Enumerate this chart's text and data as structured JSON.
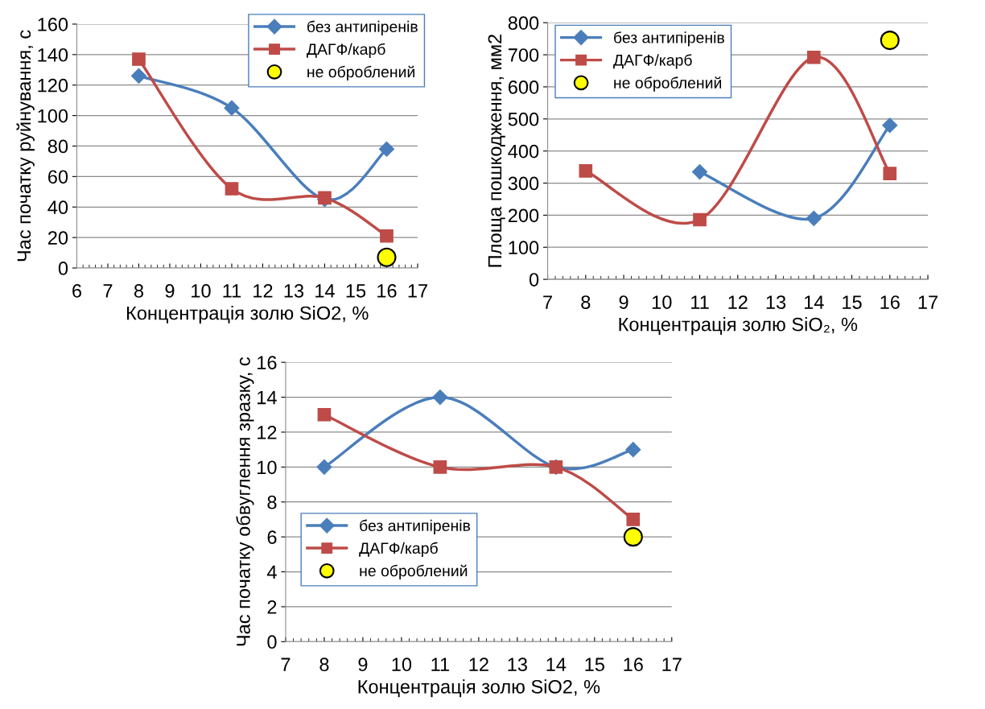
{
  "chart_data": [
    {
      "type": "line",
      "xlabel": "Концентрація золю SiO2, %",
      "ylabel": "Час початку руйнування, с",
      "xlim": [
        6,
        17
      ],
      "xticks": [
        6,
        7,
        8,
        9,
        10,
        11,
        12,
        13,
        14,
        15,
        16,
        17
      ],
      "ylim": [
        0,
        160
      ],
      "yticks": [
        0,
        20,
        40,
        60,
        80,
        100,
        120,
        140,
        160
      ],
      "grid": "y",
      "legend": "top right",
      "series": [
        {
          "name": "без антипіренів",
          "color": "#4a7ebb",
          "marker": "diamond",
          "x": [
            8,
            11,
            14,
            16
          ],
          "values": [
            126,
            105,
            45,
            78
          ]
        },
        {
          "name": "ДАГФ/карб",
          "color": "#be4b48",
          "marker": "square",
          "x": [
            8,
            11,
            14,
            16
          ],
          "values": [
            137,
            52,
            46,
            21
          ]
        },
        {
          "name": "не оброблений",
          "type": "scatter",
          "color": "#ffff00",
          "marker": "circle",
          "x": [
            16
          ],
          "values": [
            7
          ]
        }
      ]
    },
    {
      "type": "line",
      "xlabel": "Концентрація золю SiO₂, %",
      "ylabel": "Площа пошкодження, мм2",
      "xlim": [
        7,
        17
      ],
      "xticks": [
        7,
        8,
        9,
        10,
        11,
        12,
        13,
        14,
        15,
        16,
        17
      ],
      "ylim": [
        0,
        800
      ],
      "yticks": [
        0,
        100,
        200,
        300,
        400,
        500,
        600,
        700,
        800
      ],
      "grid": "y",
      "legend": "top left",
      "series": [
        {
          "name": "без антипіренів",
          "color": "#4a7ebb",
          "marker": "diamond",
          "x": [
            11,
            14,
            16
          ],
          "values": [
            335,
            190,
            480
          ]
        },
        {
          "name": "ДАГФ/карб",
          "color": "#be4b48",
          "marker": "square",
          "x": [
            8,
            11,
            14,
            16
          ],
          "values": [
            338,
            186,
            692,
            330
          ]
        },
        {
          "name": "не оброблений",
          "type": "scatter",
          "color": "#ffff00",
          "marker": "circle",
          "x": [
            16
          ],
          "values": [
            745
          ]
        }
      ]
    },
    {
      "type": "line",
      "xlabel": "Концентрація золю SiO2, %",
      "ylabel": "Час початку обвуглення зразку, с",
      "xlim": [
        7,
        17
      ],
      "xticks": [
        7,
        8,
        9,
        10,
        11,
        12,
        13,
        14,
        15,
        16,
        17
      ],
      "ylim": [
        0,
        16
      ],
      "yticks": [
        0,
        2,
        4,
        6,
        8,
        10,
        12,
        14,
        16
      ],
      "grid": "y",
      "legend": "bottom left",
      "series": [
        {
          "name": "без антипіренів",
          "color": "#4a7ebb",
          "marker": "diamond",
          "x": [
            8,
            11,
            14,
            16
          ],
          "values": [
            10,
            14,
            10,
            11
          ]
        },
        {
          "name": "ДАГФ/карб",
          "color": "#be4b48",
          "marker": "square",
          "x": [
            8,
            11,
            14,
            16
          ],
          "values": [
            13,
            10,
            10,
            7
          ]
        },
        {
          "name": "не оброблений",
          "type": "scatter",
          "color": "#ffff00",
          "marker": "circle",
          "x": [
            16
          ],
          "values": [
            6
          ]
        }
      ]
    }
  ]
}
